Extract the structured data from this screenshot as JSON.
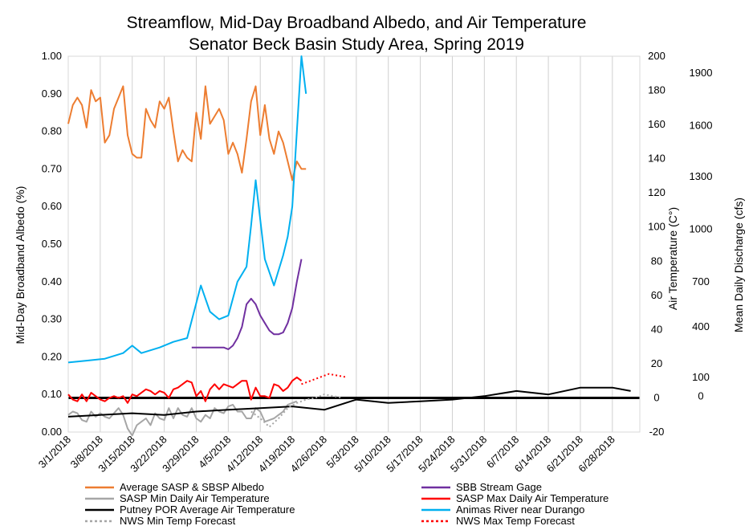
{
  "chart_data": {
    "type": "line",
    "title": "Streamflow, Mid-Day Broadband Albedo, and Air Temperature",
    "subtitle": "Senator Beck Basin Study Area, Spring 2019",
    "ylabel_left": "Mid-Day Broadband Albedo (%)",
    "ylabel_right": "Air Temperature (C°)",
    "ylabel_far_right": "Mean Daily Discharge (cfs)",
    "x_axis": {
      "type": "date",
      "start": "2018-03-01",
      "end": "2018-07-04"
    },
    "x_tick_labels": [
      "3/1/2018",
      "3/8/2018",
      "3/15/2018",
      "3/22/2018",
      "3/29/2018",
      "4/5/2018",
      "4/12/2018",
      "4/19/2018",
      "4/26/2018",
      "5/3/2018",
      "5/10/2018",
      "5/17/2018",
      "5/24/2018",
      "5/31/2018",
      "6/7/2018",
      "6/14/2018",
      "6/21/2018",
      "6/28/2018"
    ],
    "y_left": {
      "min": 0,
      "max": 1.0,
      "ticks": [
        "0.00",
        "0.10",
        "0.20",
        "0.30",
        "0.40",
        "0.50",
        "0.60",
        "0.70",
        "0.80",
        "0.90",
        "1.00"
      ]
    },
    "y_right": {
      "min": -20,
      "max": 200,
      "ticks": [
        "-20",
        "0",
        "20",
        "40",
        "60",
        "80",
        "100",
        "120",
        "140",
        "160",
        "180",
        "200"
      ]
    },
    "y_far_right_ticks": [
      {
        "label": "1900",
        "y": 0.955
      },
      {
        "label": "1600",
        "y": 0.815
      },
      {
        "label": "1300",
        "y": 0.68
      },
      {
        "label": "1000",
        "y": 0.54
      },
      {
        "label": "700",
        "y": 0.4
      },
      {
        "label": "400",
        "y": 0.28
      },
      {
        "label": "100",
        "y": 0.145
      },
      {
        "label": "0",
        "y": 0.095
      }
    ],
    "grid": "vertical",
    "legend_position": "bottom",
    "series": [
      {
        "name": "Average SASP & SBSP Albedo",
        "axis": "left",
        "color": "#ED7D31",
        "dash": "",
        "width": 2,
        "x": [
          "2018-03-01",
          "2018-03-02",
          "2018-03-03",
          "2018-03-04",
          "2018-03-05",
          "2018-03-06",
          "2018-03-07",
          "2018-03-08",
          "2018-03-09",
          "2018-03-10",
          "2018-03-11",
          "2018-03-12",
          "2018-03-13",
          "2018-03-14",
          "2018-03-15",
          "2018-03-16",
          "2018-03-17",
          "2018-03-18",
          "2018-03-19",
          "2018-03-20",
          "2018-03-21",
          "2018-03-22",
          "2018-03-23",
          "2018-03-24",
          "2018-03-25",
          "2018-03-26",
          "2018-03-27",
          "2018-03-28",
          "2018-03-29",
          "2018-03-30",
          "2018-03-31",
          "2018-04-01",
          "2018-04-02",
          "2018-04-03",
          "2018-04-04",
          "2018-04-05",
          "2018-04-06",
          "2018-04-07",
          "2018-04-08",
          "2018-04-09",
          "2018-04-10",
          "2018-04-11",
          "2018-04-12",
          "2018-04-13",
          "2018-04-14",
          "2018-04-15",
          "2018-04-16",
          "2018-04-17",
          "2018-04-18",
          "2018-04-19",
          "2018-04-20",
          "2018-04-21",
          "2018-04-22"
        ],
        "values": [
          0.82,
          0.87,
          0.89,
          0.87,
          0.81,
          0.91,
          0.88,
          0.89,
          0.77,
          0.79,
          0.86,
          0.89,
          0.92,
          0.79,
          0.74,
          0.73,
          0.73,
          0.86,
          0.83,
          0.81,
          0.88,
          0.86,
          0.89,
          0.8,
          0.72,
          0.75,
          0.73,
          0.72,
          0.85,
          0.78,
          0.92,
          0.82,
          0.84,
          0.86,
          0.83,
          0.74,
          0.77,
          0.74,
          0.69,
          0.78,
          0.88,
          0.92,
          0.79,
          0.87,
          0.78,
          0.74,
          0.8,
          0.77,
          0.72,
          0.67,
          0.72,
          0.7,
          0.7
        ]
      },
      {
        "name": "SBB Stream Gage",
        "axis": "far_right",
        "color": "#7030A0",
        "dash": "",
        "width": 2,
        "x": [
          "2018-03-28",
          "2018-04-04",
          "2018-04-05",
          "2018-04-06",
          "2018-04-07",
          "2018-04-08",
          "2018-04-09",
          "2018-04-10",
          "2018-04-11",
          "2018-04-12",
          "2018-04-13",
          "2018-04-14",
          "2018-04-15",
          "2018-04-16",
          "2018-04-17",
          "2018-04-18",
          "2018-04-19",
          "2018-04-20",
          "2018-04-21"
        ],
        "values": [
          0.225,
          0.225,
          0.22,
          0.23,
          0.25,
          0.28,
          0.34,
          0.355,
          0.34,
          0.31,
          0.29,
          0.27,
          0.26,
          0.26,
          0.265,
          0.29,
          0.33,
          0.4,
          0.46
        ]
      },
      {
        "name": "SASP Min Daily Air Temperature",
        "axis": "right",
        "color": "#A6A6A6",
        "dash": "",
        "width": 2,
        "x": [
          "2018-03-01",
          "2018-03-02",
          "2018-03-03",
          "2018-03-04",
          "2018-03-05",
          "2018-03-06",
          "2018-03-07",
          "2018-03-08",
          "2018-03-09",
          "2018-03-10",
          "2018-03-11",
          "2018-03-12",
          "2018-03-13",
          "2018-03-14",
          "2018-03-15",
          "2018-03-16",
          "2018-03-17",
          "2018-03-18",
          "2018-03-19",
          "2018-03-20",
          "2018-03-21",
          "2018-03-22",
          "2018-03-23",
          "2018-03-24",
          "2018-03-25",
          "2018-03-26",
          "2018-03-27",
          "2018-03-28",
          "2018-03-29",
          "2018-03-30",
          "2018-03-31",
          "2018-04-01",
          "2018-04-02",
          "2018-04-03",
          "2018-04-04",
          "2018-04-05",
          "2018-04-06",
          "2018-04-07",
          "2018-04-08",
          "2018-04-09",
          "2018-04-10",
          "2018-04-11",
          "2018-04-12",
          "2018-04-13",
          "2018-04-14",
          "2018-04-15",
          "2018-04-16",
          "2018-04-17",
          "2018-04-18",
          "2018-04-19",
          "2018-04-20"
        ],
        "values": [
          -10,
          -8,
          -9,
          -13,
          -14,
          -8,
          -11,
          -9,
          -11,
          -12,
          -9,
          -6,
          -10,
          -18,
          -22,
          -16,
          -14,
          -12,
          -16,
          -9,
          -12,
          -13,
          -6,
          -12,
          -6,
          -10,
          -11,
          -6,
          -12,
          -14,
          -10,
          -12,
          -6,
          -8,
          -9,
          -5,
          -4,
          -8,
          -8,
          -12,
          -12,
          -6,
          -8,
          -14,
          -13,
          -12,
          -10,
          -8,
          -4,
          -3,
          -2
        ]
      },
      {
        "name": "SASP Max Daily Air Temperature",
        "axis": "right",
        "color": "#FF0000",
        "dash": "",
        "width": 2,
        "x": [
          "2018-03-01",
          "2018-03-02",
          "2018-03-03",
          "2018-03-04",
          "2018-03-05",
          "2018-03-06",
          "2018-03-07",
          "2018-03-08",
          "2018-03-09",
          "2018-03-10",
          "2018-03-11",
          "2018-03-12",
          "2018-03-13",
          "2018-03-14",
          "2018-03-15",
          "2018-03-16",
          "2018-03-17",
          "2018-03-18",
          "2018-03-19",
          "2018-03-20",
          "2018-03-21",
          "2018-03-22",
          "2018-03-23",
          "2018-03-24",
          "2018-03-25",
          "2018-03-26",
          "2018-03-27",
          "2018-03-28",
          "2018-03-29",
          "2018-03-30",
          "2018-03-31",
          "2018-04-01",
          "2018-04-02",
          "2018-04-03",
          "2018-04-04",
          "2018-04-05",
          "2018-04-06",
          "2018-04-07",
          "2018-04-08",
          "2018-04-09",
          "2018-04-10",
          "2018-04-11",
          "2018-04-12",
          "2018-04-13",
          "2018-04-14",
          "2018-04-15",
          "2018-04-16",
          "2018-04-17",
          "2018-04-18",
          "2018-04-19",
          "2018-04-20",
          "2018-04-21"
        ],
        "values": [
          2,
          -1,
          -2,
          2,
          -2,
          3,
          1,
          -1,
          -2,
          0,
          1,
          0,
          1,
          -3,
          2,
          1,
          3,
          5,
          4,
          2,
          4,
          3,
          0,
          5,
          6,
          8,
          10,
          9,
          1,
          4,
          -2,
          5,
          8,
          5,
          8,
          7,
          6,
          8,
          10,
          10,
          -1,
          6,
          1,
          1,
          0,
          8,
          7,
          4,
          6,
          10,
          12,
          10
        ]
      },
      {
        "name": "Putney POR Average Air Temperature",
        "axis": "right",
        "color": "#000000",
        "dash": "",
        "width": 2,
        "x": [
          "2018-03-01",
          "2018-03-08",
          "2018-03-15",
          "2018-03-22",
          "2018-03-29",
          "2018-04-05",
          "2018-04-12",
          "2018-04-19",
          "2018-04-26",
          "2018-05-03",
          "2018-05-10",
          "2018-05-17",
          "2018-05-24",
          "2018-05-31",
          "2018-06-07",
          "2018-06-14",
          "2018-06-21",
          "2018-06-28",
          "2018-07-02"
        ],
        "values": [
          -11,
          -10,
          -9,
          -10,
          -8,
          -7,
          -6,
          -5,
          -7,
          -1,
          -3,
          -2,
          -1,
          1,
          4,
          2,
          6,
          6,
          4
        ]
      },
      {
        "name": "Animas River near Durango",
        "axis": "far_right",
        "color": "#00B0F0",
        "dash": "",
        "width": 2,
        "x": [
          "2018-03-01",
          "2018-03-05",
          "2018-03-09",
          "2018-03-13",
          "2018-03-15",
          "2018-03-17",
          "2018-03-21",
          "2018-03-24",
          "2018-03-27",
          "2018-03-30",
          "2018-04-01",
          "2018-04-03",
          "2018-04-05",
          "2018-04-07",
          "2018-04-09",
          "2018-04-10",
          "2018-04-11",
          "2018-04-13",
          "2018-04-15",
          "2018-04-17",
          "2018-04-18",
          "2018-04-19",
          "2018-04-20",
          "2018-04-21",
          "2018-04-22"
        ],
        "values": [
          0.185,
          0.19,
          0.195,
          0.21,
          0.23,
          0.21,
          0.225,
          0.24,
          0.25,
          0.39,
          0.32,
          0.3,
          0.31,
          0.4,
          0.44,
          0.55,
          0.67,
          0.46,
          0.39,
          0.47,
          0.52,
          0.6,
          0.8,
          1.0,
          0.9
        ]
      },
      {
        "name": "NWS Min Temp Forecast",
        "axis": "right",
        "color": "#A6A6A6",
        "dash": "2,3",
        "width": 2,
        "x": [
          "2018-04-10",
          "2018-04-12",
          "2018-04-14",
          "2018-04-16",
          "2018-04-18",
          "2018-04-20",
          "2018-04-22",
          "2018-04-24",
          "2018-04-26",
          "2018-04-28",
          "2018-04-30"
        ],
        "values": [
          -8,
          -12,
          -17,
          -12,
          -6,
          -3,
          -1,
          0,
          2,
          1,
          0
        ]
      },
      {
        "name": "NWS Max Temp Forecast",
        "axis": "right",
        "color": "#FF0000",
        "dash": "2,3",
        "width": 2,
        "x": [
          "2018-04-21",
          "2018-04-23",
          "2018-04-25",
          "2018-04-27",
          "2018-04-29",
          "2018-05-01"
        ],
        "values": [
          8,
          10,
          12,
          14,
          13,
          12
        ]
      }
    ],
    "zero_line": {
      "axis": "right",
      "value": 0,
      "color": "#000000"
    }
  }
}
